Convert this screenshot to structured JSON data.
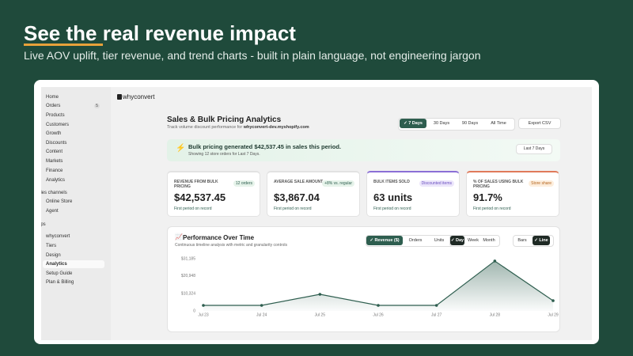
{
  "header": {
    "title": "See the real revenue impact",
    "subtitle": "Live AOV uplift, tier revenue, and trend charts - built in plain language, not engineering jargon"
  },
  "app": {
    "brand": "whyconvert",
    "sidebar": [
      {
        "label": "Home"
      },
      {
        "label": "Orders",
        "badge": "5"
      },
      {
        "label": "Products"
      },
      {
        "label": "Customers"
      },
      {
        "label": "Growth"
      },
      {
        "label": "Discounts"
      },
      {
        "label": "Content"
      },
      {
        "label": "Markets"
      },
      {
        "label": "Finance"
      },
      {
        "label": "Analytics"
      },
      {
        "label": "ales channels"
      },
      {
        "label": "Online Store"
      },
      {
        "label": "Agent"
      },
      {
        "label": "pps"
      },
      {
        "label": "whyconvert"
      },
      {
        "label": "Tiers"
      },
      {
        "label": "Design"
      },
      {
        "label": "Analytics"
      },
      {
        "label": "Setup Guide"
      },
      {
        "label": "Plan & Billing"
      }
    ],
    "page": {
      "title": "Sales & Bulk Pricing Analytics",
      "subtitle": "Track volume discount performance for",
      "store": "whyconvert-dev.myshopify.com",
      "ranges": [
        "✓ 7 Days",
        "30 Days",
        "90 Days",
        "All Time"
      ],
      "export": "Export CSV",
      "banner": {
        "headline": "Bulk pricing generated $42,537.45 in sales this period.",
        "detail": "Showing 12 store orders for Last 7 Days.",
        "badge": "Last 7 Days"
      },
      "kpis": [
        {
          "label": "REVENUE FROM BULK PRICING",
          "badge": "12 orders",
          "value": "$42,537.45",
          "note": "First period on record"
        },
        {
          "label": "AVERAGE SALE AMOUNT",
          "badge": "+8% vs. regular",
          "value": "$3,867.04",
          "note": "First period on record"
        },
        {
          "label": "BULK ITEMS SOLD",
          "badge": "Discounted items",
          "value": "63 units",
          "note": "First period on record"
        },
        {
          "label": "% OF SALES USING BULK PRICING",
          "badge": "Store share",
          "value": "91.7%",
          "note": "First period on record"
        }
      ],
      "chart_card": {
        "title": "Performance Over Time",
        "subtitle": "Continuous timeline analysis with metric and granularity controls",
        "metrics": [
          "✓ Revenue ($)",
          "Orders",
          "Units"
        ],
        "granularity": [
          "✓ Day",
          "Week",
          "Month"
        ],
        "styles": [
          "Bars",
          "✓ Line"
        ]
      }
    }
  },
  "chart_data": {
    "type": "area",
    "categories": [
      "Jul 23",
      "Jul 24",
      "Jul 25",
      "Jul 26",
      "Jul 27",
      "Jul 28",
      "Jul 29"
    ],
    "values": [
      3300,
      3300,
      9900,
      3300,
      3300,
      29800,
      6100
    ],
    "color": "#2e5e4f",
    "ylim": [
      0,
      31185
    ],
    "yticks": [
      0,
      {
        "value": 10324,
        "label": "$10,324"
      },
      {
        "value": 20948,
        "label": "$20,948"
      },
      {
        "value": 31185,
        "label": "$31,185"
      }
    ],
    "grid": false
  }
}
